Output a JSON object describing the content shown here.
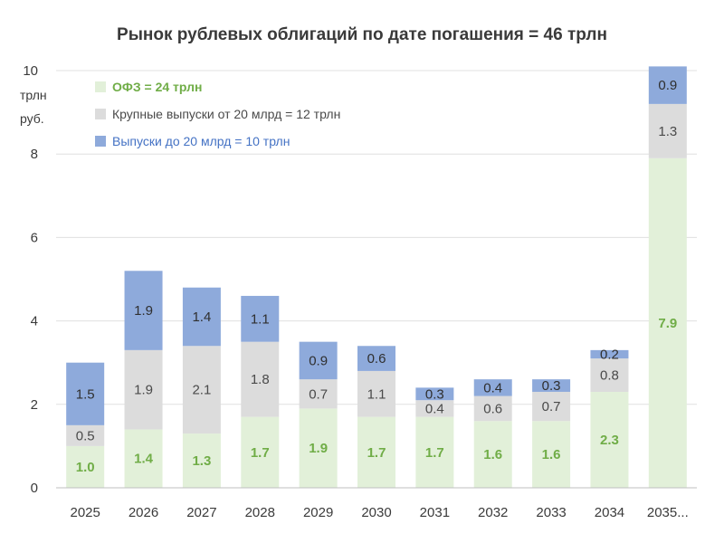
{
  "chart_data": {
    "type": "bar",
    "stacked": true,
    "title": "Рынок рублевых облигаций по дате погашения = 46 трлн",
    "ylabel_lines": [
      "трлн",
      "руб."
    ],
    "ylim": [
      0,
      10
    ],
    "yticks": [
      0,
      2,
      4,
      6,
      8,
      10
    ],
    "categories": [
      "2025",
      "2026",
      "2027",
      "2028",
      "2029",
      "2030",
      "2031",
      "2032",
      "2033",
      "2034",
      "2035..."
    ],
    "series": [
      {
        "name": "ОФЗ = 24 трлн",
        "color": "#e2f0d9",
        "label_color": "#70ad47",
        "label_bold": true,
        "values": [
          1.0,
          1.4,
          1.3,
          1.7,
          1.9,
          1.7,
          1.7,
          1.6,
          1.6,
          2.3,
          7.9
        ],
        "labels": [
          "1.0",
          "1.4",
          "1.3",
          "1.7",
          "1.9",
          "1.7",
          "1.7",
          "1.6",
          "1.6",
          "2.3",
          "7.9"
        ]
      },
      {
        "name": "Крупные выпуски от 20 млрд = 12 трлн",
        "color": "#dcdcdc",
        "label_color": "#4a4a4a",
        "label_bold": false,
        "values": [
          0.5,
          1.9,
          2.1,
          1.8,
          0.7,
          1.1,
          0.4,
          0.6,
          0.7,
          0.8,
          1.3
        ],
        "labels": [
          "0.5",
          "1.9",
          "2.1",
          "1.8",
          "0.7",
          "1.1",
          "0.4",
          "0.6",
          "0.7",
          "0.8",
          "1.3"
        ]
      },
      {
        "name": "Выпуски до 20 млрд = 10 трлн",
        "color": "#8eaadb",
        "label_color": "#2f2f2f",
        "label_bold": false,
        "values": [
          1.5,
          1.9,
          1.4,
          1.1,
          0.9,
          0.6,
          0.3,
          0.4,
          0.3,
          0.2,
          0.9
        ],
        "labels": [
          "1.5",
          "1.9",
          "1.4",
          "1.1",
          "0.9",
          "0.6",
          "0.3",
          "0.4",
          "0.3",
          "0.2",
          "0.9"
        ]
      }
    ],
    "legend": {
      "placement": "top-left",
      "text_colors": [
        "#70ad47",
        "#4a4a4a",
        "#4472c4"
      ]
    },
    "grid": true,
    "gridline_color": "#e0e0e0"
  }
}
